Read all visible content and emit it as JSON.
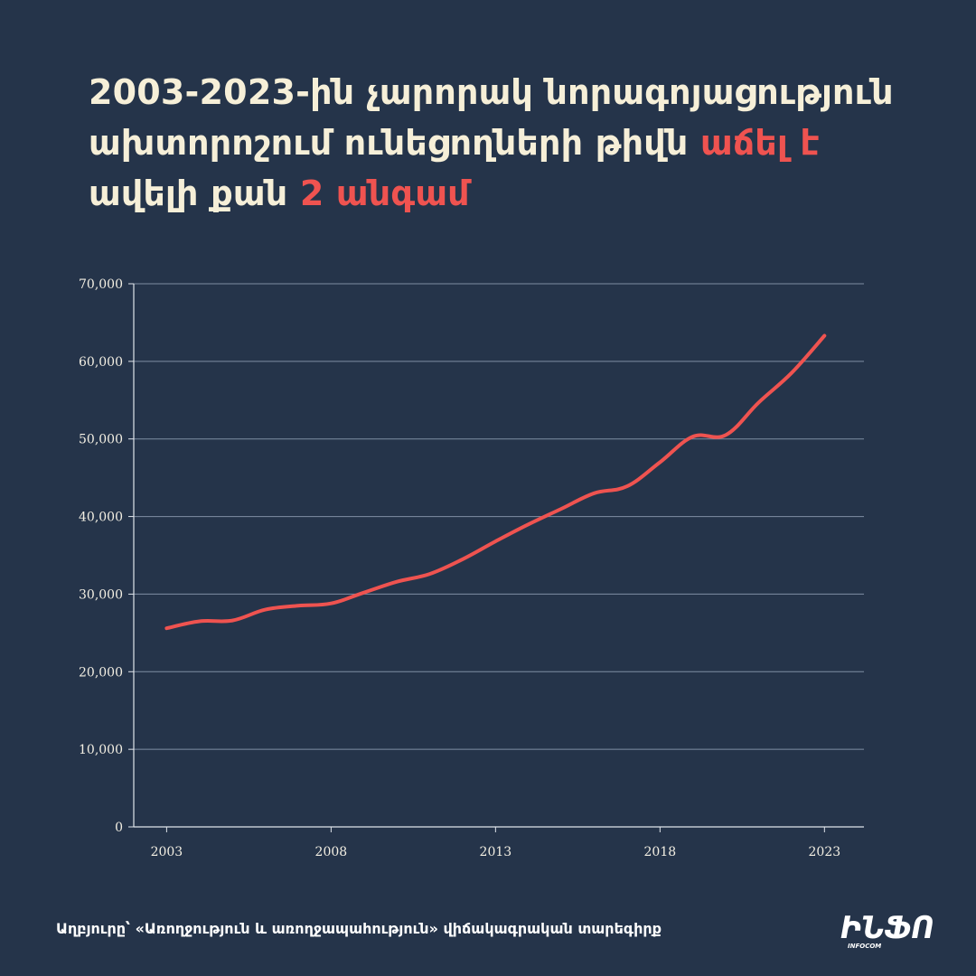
{
  "title": {
    "part1": "2003-2023-ին չարորակ նորագոյացություն ախտորոշում ունեցողների թիվն ",
    "highlight1": "աճել է",
    "part2": " ավելի քան ",
    "highlight2": "2 անգամ"
  },
  "colors": {
    "background": "#25344a",
    "title": "#f6efd8",
    "accent": "#ef5350",
    "grid": "#7f8ea3",
    "axis": "#dfe4ea"
  },
  "chart_data": {
    "type": "line",
    "title": "",
    "xlabel": "",
    "ylabel": "",
    "ylim": [
      0,
      70000
    ],
    "yticks": [
      0,
      10000,
      20000,
      30000,
      40000,
      50000,
      60000,
      70000
    ],
    "ytick_labels": [
      "0",
      "10,000",
      "20,000",
      "30,000",
      "40,000",
      "50,000",
      "60,000",
      "70,000"
    ],
    "xticks": [
      2003,
      2008,
      2013,
      2018,
      2023
    ],
    "xtick_labels": [
      "2003",
      "2008",
      "2013",
      "2018",
      "2023"
    ],
    "grid": true,
    "legend": "none",
    "series": [
      {
        "color": "#ef5350",
        "x": [
          2003,
          2004,
          2005,
          2006,
          2007,
          2008,
          2009,
          2010,
          2011,
          2012,
          2013,
          2014,
          2015,
          2016,
          2017,
          2018,
          2019,
          2020,
          2021,
          2022,
          2023
        ],
        "y": [
          25600,
          26500,
          26600,
          28000,
          28500,
          28800,
          30200,
          31600,
          32600,
          34500,
          36800,
          39000,
          41000,
          43000,
          43900,
          47000,
          50300,
          50500,
          54700,
          58500,
          63300
        ]
      }
    ]
  },
  "footer": {
    "source": "Աղբյուրը՝ «Առողջություն և առողջապահություն» վիճակագրական տարեգիրք"
  },
  "logo": {
    "text": "ԻՆՖՈ",
    "subtext": "INFOCOM"
  }
}
